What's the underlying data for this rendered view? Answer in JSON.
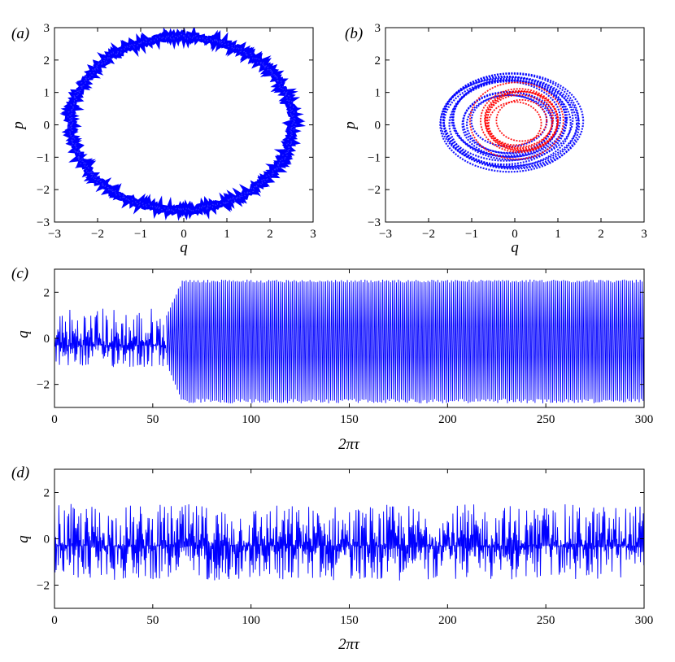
{
  "figure": {
    "background": "#ffffff",
    "series_color": "#0000ff",
    "secondary_color": "#ff0000"
  },
  "chart_data": [
    {
      "id": "a",
      "type": "scatter",
      "panel_label": "(a)",
      "xlabel": "q",
      "ylabel": "p",
      "xlim": [
        -3,
        3
      ],
      "ylim": [
        -3,
        3
      ],
      "xticks": [
        -3,
        -2,
        -1,
        0,
        1,
        2,
        3
      ],
      "yticks": [
        -3,
        -2,
        -1,
        0,
        1,
        2,
        3
      ],
      "grid": false,
      "series": [
        {
          "color": "#0000ff",
          "shape": "limit-cycle ring",
          "center": [
            -0.05,
            0.05
          ],
          "radius_q": 2.58,
          "radius_p": 2.67,
          "band_width": 0.14
        }
      ]
    },
    {
      "id": "b",
      "type": "scatter",
      "panel_label": "(b)",
      "xlabel": "q",
      "ylabel": "p",
      "xlim": [
        -3,
        3
      ],
      "ylim": [
        -3,
        3
      ],
      "xticks": [
        -3,
        -2,
        -1,
        0,
        1,
        2,
        3
      ],
      "yticks": [
        -3,
        -2,
        -1,
        0,
        1,
        2,
        3
      ],
      "grid": false,
      "series": [
        {
          "color": "#0000ff",
          "shape": "chaotic attractor",
          "q_range": [
            -1.8,
            1.5
          ],
          "p_range": [
            -1.4,
            1.6
          ]
        },
        {
          "color": "#ff0000",
          "shape": "inner attractor",
          "q_range": [
            -1.1,
            1.1
          ],
          "p_range": [
            -1.1,
            1.3
          ]
        }
      ]
    },
    {
      "id": "c",
      "type": "line",
      "panel_label": "(c)",
      "xlabel": "2πτ",
      "ylabel": "q",
      "xlim": [
        0,
        300
      ],
      "ylim": [
        -3,
        3
      ],
      "xticks": [
        0,
        50,
        100,
        150,
        200,
        250,
        300
      ],
      "yticks": [
        -2,
        0,
        2
      ],
      "grid": false,
      "series": [
        {
          "color": "#0000ff",
          "segments": [
            {
              "x_range": [
                0,
                57
              ],
              "q_min": -1.3,
              "q_max": 1.4,
              "regime": "irregular"
            },
            {
              "x_range": [
                57,
                300
              ],
              "q_min": -2.85,
              "q_max": 2.6,
              "regime": "large periodic oscillation"
            }
          ]
        }
      ]
    },
    {
      "id": "d",
      "type": "line",
      "panel_label": "(d)",
      "xlabel": "2πτ",
      "ylabel": "q",
      "xlim": [
        0,
        300
      ],
      "ylim": [
        -3,
        3
      ],
      "xticks": [
        0,
        50,
        100,
        150,
        200,
        250,
        300
      ],
      "yticks": [
        -2,
        0,
        2
      ],
      "grid": false,
      "series": [
        {
          "color": "#0000ff",
          "segments": [
            {
              "x_range": [
                0,
                300
              ],
              "q_min": -1.8,
              "q_max": 1.5,
              "regime": "irregular"
            }
          ]
        }
      ]
    }
  ]
}
